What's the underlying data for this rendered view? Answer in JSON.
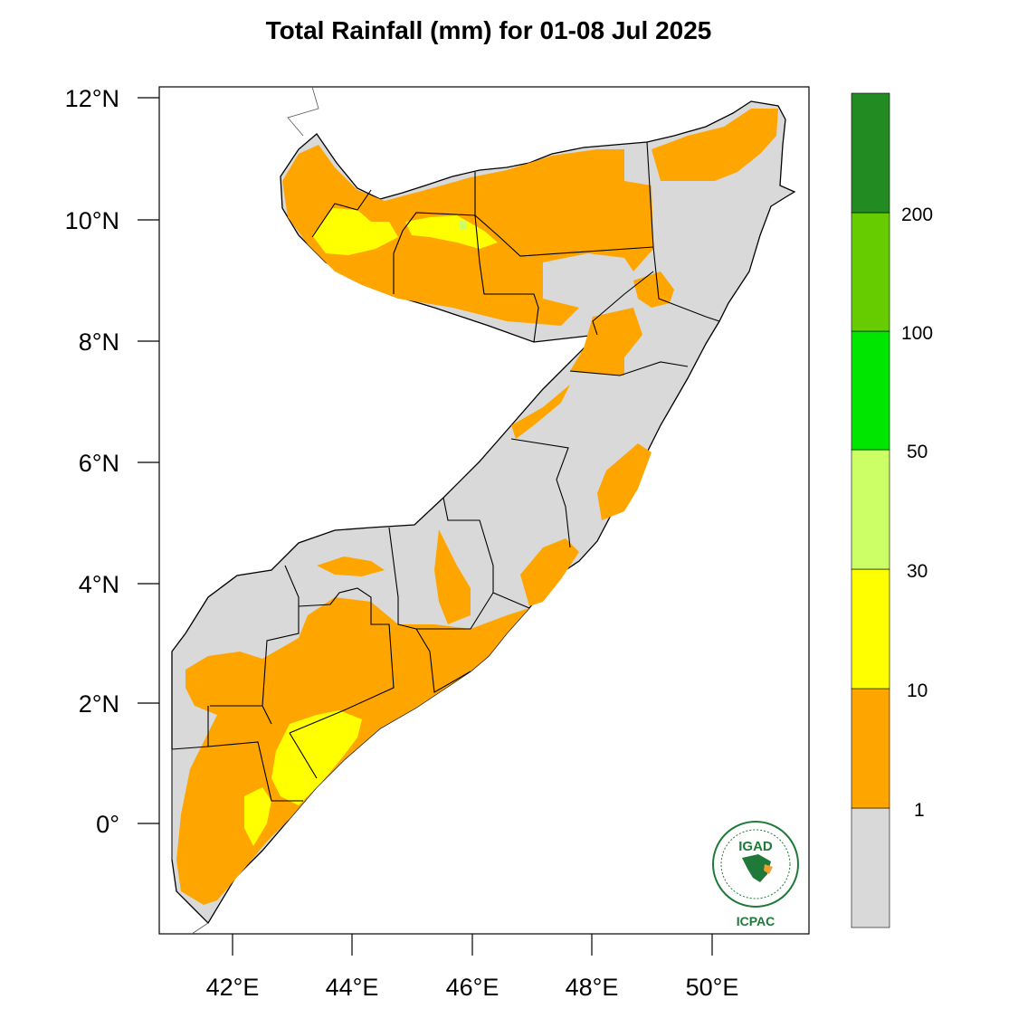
{
  "title": "Total Rainfall (mm) for 01-08 Jul 2025",
  "axes": {
    "y_ticks": [
      "12°N",
      "10°N",
      "8°N",
      "6°N",
      "4°N",
      "2°N",
      "0°"
    ],
    "x_ticks": [
      "42°E",
      "44°E",
      "46°E",
      "48°E",
      "50°E"
    ]
  },
  "colorbar": {
    "bins": [
      {
        "color": "#d9d9d9"
      },
      {
        "color": "#ffa500"
      },
      {
        "color": "#ffff00"
      },
      {
        "color": "#ccff66"
      },
      {
        "color": "#00e600"
      },
      {
        "color": "#66cc00"
      },
      {
        "color": "#228b22"
      }
    ],
    "labels": [
      "1",
      "10",
      "30",
      "50",
      "100",
      "200"
    ]
  },
  "logo": {
    "top_text": "IGAD",
    "bottom_text": "ICPAC"
  }
}
